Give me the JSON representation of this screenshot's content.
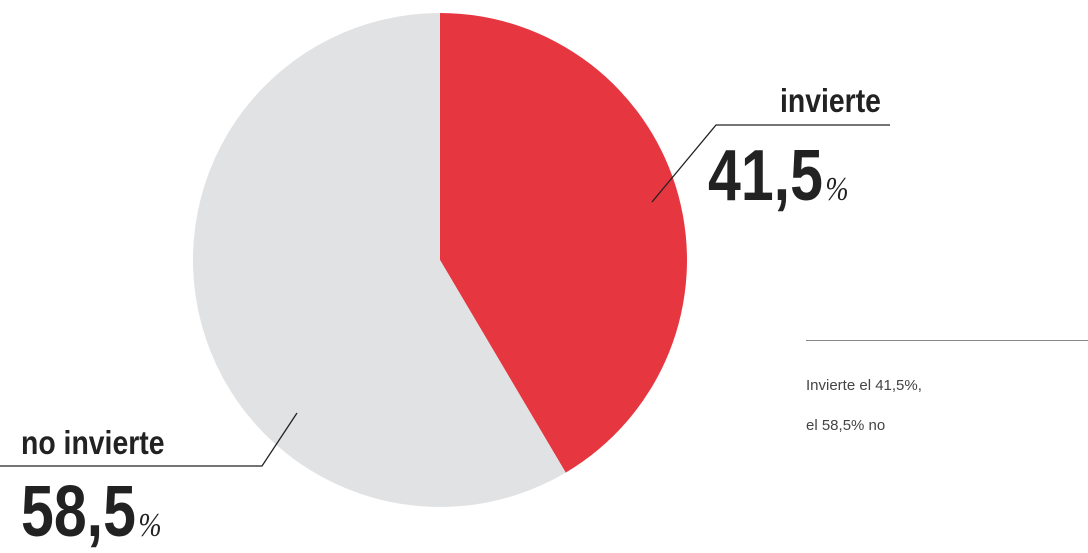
{
  "chart_data": {
    "type": "pie",
    "title": "",
    "slices": [
      {
        "label": "invierte",
        "value": 41.5,
        "display": "41,5",
        "unit": "%",
        "color": "#e63741"
      },
      {
        "label": "no invierte",
        "value": 58.5,
        "display": "58,5",
        "unit": "%",
        "color": "#e1e2e4"
      }
    ],
    "start": "12 o'clock",
    "direction": "clockwise"
  },
  "note": {
    "line1": "Invierte el 41,5%,",
    "line2": "el 58,5% no"
  }
}
